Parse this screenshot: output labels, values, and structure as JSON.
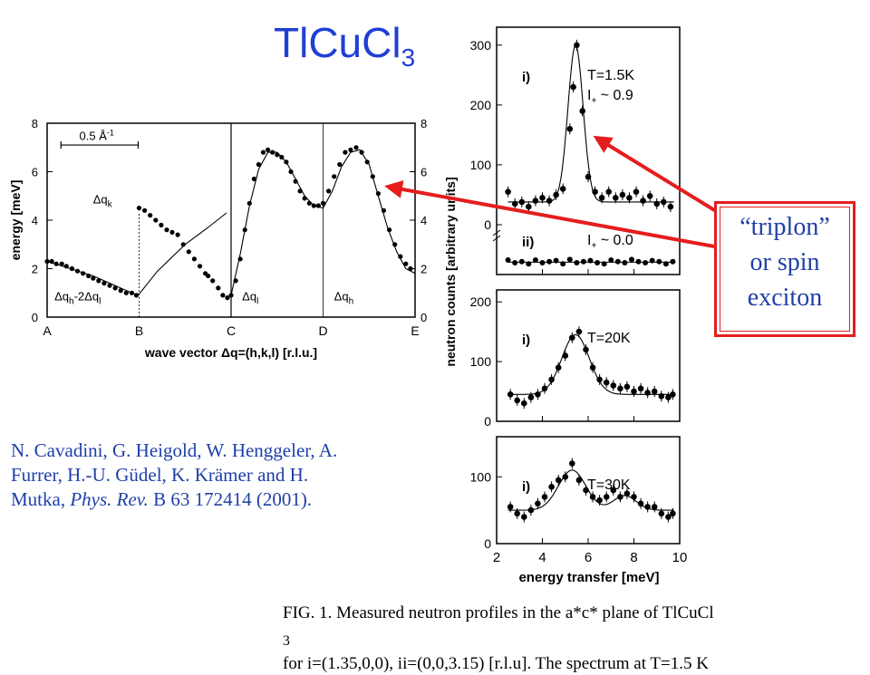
{
  "title": {
    "main": "TlCuCl",
    "sub": "3"
  },
  "citation": {
    "line1": "N. Cavadini, G. Heigold, W. Henggeler, A.",
    "line2": "Furrer, H.-U. Güdel, K. Krämer and   H.",
    "line3_pre": "Mutka, ",
    "line3_journal": "Phys. Rev.",
    "line3_post": " B 63 172414 (2001)."
  },
  "callout": {
    "line1": "“triplon”",
    "line2": "or spin",
    "line3": "exciton"
  },
  "caption": {
    "line1": "FIG. 1. Measured neutron profiles in the a*c* plane of TlCuCl",
    "line1_sub": "3",
    "line2": "for i=(1.35,0,0),  ii=(0,0,3.15) [r.l.u]. The spectrum at T=1.5 K"
  },
  "colors": {
    "title": "#1f3fd6",
    "text": "#1f3fa8",
    "arrow": "#e51d1d"
  },
  "chart_data": [
    {
      "type": "scatter",
      "xlabel": "wave vector  Δq=(h,k,l) [r.l.u.]",
      "ylabel": "energy [meV]",
      "ylim": [
        0,
        8
      ],
      "yticks": [
        "0",
        "2",
        "4",
        "6",
        "8"
      ],
      "xticks": [
        "A",
        "B",
        "C",
        "D",
        "E"
      ],
      "scalebar": "0.5 Å",
      "scalebar_exp": "-1",
      "segment_labels": [
        "Δq",
        "h",
        "-2Δq",
        "l",
        "Δq",
        "k",
        "Δq",
        "l",
        "Δq",
        "h"
      ],
      "series": [
        {
          "x": [
            0.0,
            0.05,
            0.1,
            0.16,
            0.21,
            0.27,
            0.33,
            0.39,
            0.45,
            0.5,
            0.56,
            0.62,
            0.68,
            0.74,
            0.8,
            0.86,
            0.92,
            0.97
          ],
          "y": [
            2.3,
            2.3,
            2.2,
            2.2,
            2.1,
            2.0,
            1.9,
            1.8,
            1.7,
            1.6,
            1.5,
            1.4,
            1.3,
            1.2,
            1.1,
            1.0,
            1.0,
            0.9
          ]
        },
        {
          "x": [
            1.0,
            1.06,
            1.12,
            1.18,
            1.24,
            1.3,
            1.36,
            1.42,
            1.48,
            1.54,
            1.6,
            1.66,
            1.72
          ],
          "y": [
            4.5,
            4.4,
            4.2,
            4.0,
            3.8,
            3.6,
            3.5,
            3.4,
            3.0,
            2.7,
            2.4,
            2.1,
            1.8
          ]
        },
        {
          "x": [
            1.75,
            1.8,
            1.86,
            1.91,
            1.96
          ],
          "y": [
            1.7,
            1.5,
            1.2,
            0.9,
            0.8
          ]
        },
        {
          "x": [
            2.0,
            2.05,
            2.1,
            2.15,
            2.2,
            2.25,
            2.3,
            2.35,
            2.4,
            2.45,
            2.5,
            2.55,
            2.6,
            2.65,
            2.7,
            2.75,
            2.8,
            2.85,
            2.9,
            2.95
          ],
          "y": [
            0.9,
            1.5,
            2.4,
            3.6,
            4.7,
            5.7,
            6.3,
            6.8,
            6.9,
            6.8,
            6.7,
            6.6,
            6.4,
            6.0,
            5.6,
            5.2,
            4.9,
            4.7,
            4.6,
            4.6
          ]
        },
        {
          "x": [
            3.0,
            3.06,
            3.12,
            3.18,
            3.24,
            3.3,
            3.36,
            3.42,
            3.48,
            3.54,
            3.6,
            3.66,
            3.72,
            3.78,
            3.84,
            3.9,
            3.95
          ],
          "y": [
            4.7,
            5.2,
            5.8,
            6.3,
            6.8,
            6.9,
            7.0,
            6.8,
            6.4,
            5.8,
            5.1,
            4.4,
            3.6,
            3.0,
            2.5,
            2.2,
            2.0
          ]
        }
      ],
      "fit": {
        "x": [
          0,
          0.5,
          0.95,
          1.0,
          1.2,
          1.5,
          1.75,
          1.95,
          2.0,
          2.1,
          2.2,
          2.3,
          2.4,
          2.5,
          2.6,
          2.7,
          2.8,
          2.9,
          3.0,
          3.1,
          3.2,
          3.3,
          3.4,
          3.5,
          3.6,
          3.7,
          3.8,
          3.9,
          4.0
        ],
        "y": [
          2.3,
          1.7,
          0.95,
          0.95,
          1.9,
          3.0,
          3.7,
          4.3,
          0.9,
          2.6,
          4.6,
          6.1,
          6.8,
          6.8,
          6.4,
          5.7,
          5.0,
          4.6,
          4.5,
          5.2,
          6.2,
          6.8,
          6.9,
          6.3,
          5.0,
          3.7,
          2.7,
          2.0,
          1.8
        ]
      }
    },
    {
      "type": "scatter",
      "panel": "T=1.5K",
      "ylabel": "neutron counts [arbitrary units]",
      "ylim": [
        0,
        330
      ],
      "yticks": [
        "0",
        "100",
        "200",
        "300"
      ],
      "labels": {
        "i": "i)",
        "ii": "ii)",
        "temp": "T=1.5K",
        "intensity_pre": "I",
        "intensity_sub": "+",
        "intensity_post": "~ 0.9",
        "intensity2_pre": "I",
        "intensity2_sub": "+",
        "intensity2_post": "~ 0.0"
      },
      "x": [
        2.5,
        2.8,
        3.1,
        3.4,
        3.7,
        4.0,
        4.3,
        4.6,
        4.9,
        5.2,
        5.35,
        5.5,
        5.75,
        6.0,
        6.3,
        6.6,
        6.9,
        7.2,
        7.5,
        7.8,
        8.1,
        8.4,
        8.7,
        9.0,
        9.3,
        9.6
      ],
      "y": [
        55,
        35,
        38,
        30,
        40,
        45,
        40,
        50,
        60,
        160,
        230,
        300,
        190,
        80,
        55,
        45,
        55,
        45,
        50,
        45,
        55,
        40,
        48,
        35,
        38,
        30
      ],
      "x_ii": [
        2.5,
        2.8,
        3.1,
        3.4,
        3.7,
        4.0,
        4.3,
        4.6,
        4.9,
        5.2,
        5.5,
        5.8,
        6.1,
        6.4,
        6.7,
        7.0,
        7.3,
        7.6,
        7.9,
        8.2,
        8.5,
        8.8,
        9.1,
        9.4,
        9.7
      ],
      "y_ii": [
        15,
        10,
        12,
        8,
        15,
        10,
        12,
        14,
        8,
        16,
        10,
        12,
        14,
        10,
        8,
        15,
        12,
        10,
        16,
        12,
        10,
        14,
        12,
        8,
        12
      ]
    },
    {
      "type": "scatter",
      "panel": "T=20K",
      "ylim": [
        0,
        220
      ],
      "yticks": [
        "0",
        "100",
        "200"
      ],
      "labels": {
        "i": "i)",
        "temp": "T=20K"
      },
      "x": [
        2.6,
        2.9,
        3.2,
        3.5,
        3.8,
        4.1,
        4.4,
        4.7,
        5.0,
        5.3,
        5.6,
        5.9,
        6.2,
        6.5,
        6.8,
        7.1,
        7.4,
        7.7,
        8.0,
        8.3,
        8.6,
        8.9,
        9.2,
        9.5,
        9.7
      ],
      "y": [
        45,
        35,
        30,
        40,
        45,
        55,
        70,
        90,
        110,
        140,
        150,
        120,
        90,
        70,
        65,
        60,
        55,
        58,
        50,
        55,
        48,
        50,
        42,
        40,
        45
      ]
    },
    {
      "type": "scatter",
      "panel": "T=30K",
      "xlabel": "energy transfer [meV]",
      "xlim": [
        2,
        10
      ],
      "xticks": [
        "2",
        "4",
        "6",
        "8",
        "10"
      ],
      "ylim": [
        0,
        160
      ],
      "yticks": [
        "0",
        "100"
      ],
      "labels": {
        "i": "i)",
        "temp": "T=30K"
      },
      "x": [
        2.6,
        2.9,
        3.2,
        3.5,
        3.8,
        4.1,
        4.4,
        4.7,
        5.0,
        5.3,
        5.6,
        5.9,
        6.2,
        6.5,
        6.8,
        7.1,
        7.4,
        7.7,
        8.0,
        8.3,
        8.6,
        8.9,
        9.2,
        9.5,
        9.7
      ],
      "y": [
        55,
        45,
        40,
        50,
        60,
        70,
        85,
        95,
        100,
        120,
        95,
        80,
        70,
        65,
        70,
        80,
        70,
        75,
        70,
        60,
        55,
        55,
        45,
        40,
        45
      ]
    }
  ]
}
